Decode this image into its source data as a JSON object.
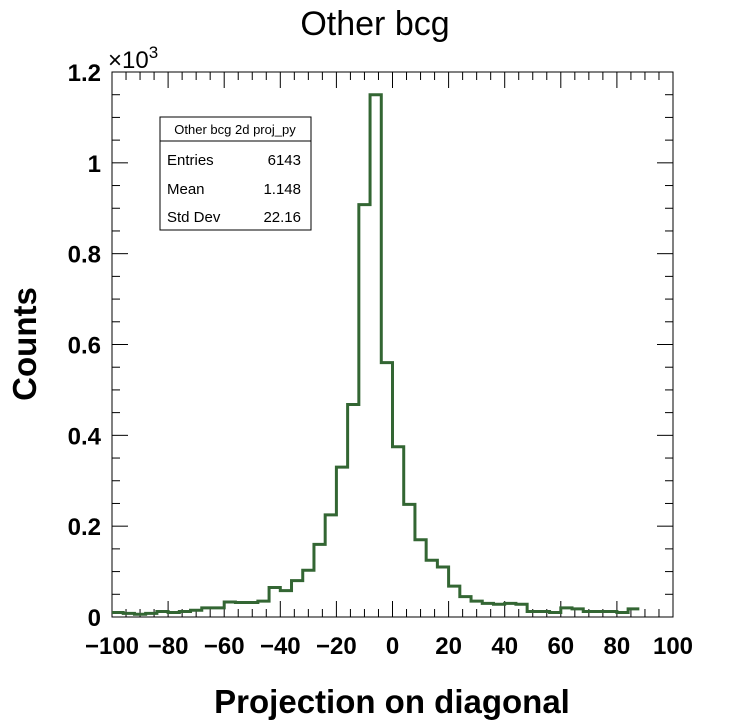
{
  "chart_data": {
    "type": "histogram",
    "title": "Other bcg",
    "xlabel": "Projection on diagonal",
    "ylabel": "Counts",
    "xlim": [
      -100,
      100
    ],
    "ylim": [
      0,
      1200
    ],
    "y_multiplier_label": "×10",
    "y_multiplier_exp": "3",
    "line_color": "#336633",
    "x_ticks": [
      "−100",
      "−80",
      "−60",
      "−40",
      "−20",
      "0",
      "20",
      "40",
      "60",
      "80",
      "100"
    ],
    "y_ticks": [
      "0",
      "0.2",
      "0.4",
      "0.6",
      "0.8",
      "1",
      "1.2"
    ],
    "bin_edges_start": -100,
    "bin_width": 4,
    "values": [
      10,
      8,
      6,
      8,
      12,
      10,
      12,
      15,
      20,
      20,
      33,
      32,
      32,
      35,
      65,
      58,
      80,
      103,
      160,
      225,
      330,
      468,
      908,
      1150,
      560,
      375,
      248,
      170,
      125,
      110,
      68,
      45,
      35,
      30,
      28,
      30,
      28,
      12,
      12,
      10,
      20,
      18,
      12,
      12,
      12,
      10,
      18
    ],
    "stats": {
      "name": "Other bcg 2d proj_py",
      "rows": [
        {
          "label": "Entries",
          "value": "6143"
        },
        {
          "label": "Mean",
          "value": "1.148"
        },
        {
          "label": "Std Dev",
          "value": "22.16"
        }
      ]
    }
  }
}
